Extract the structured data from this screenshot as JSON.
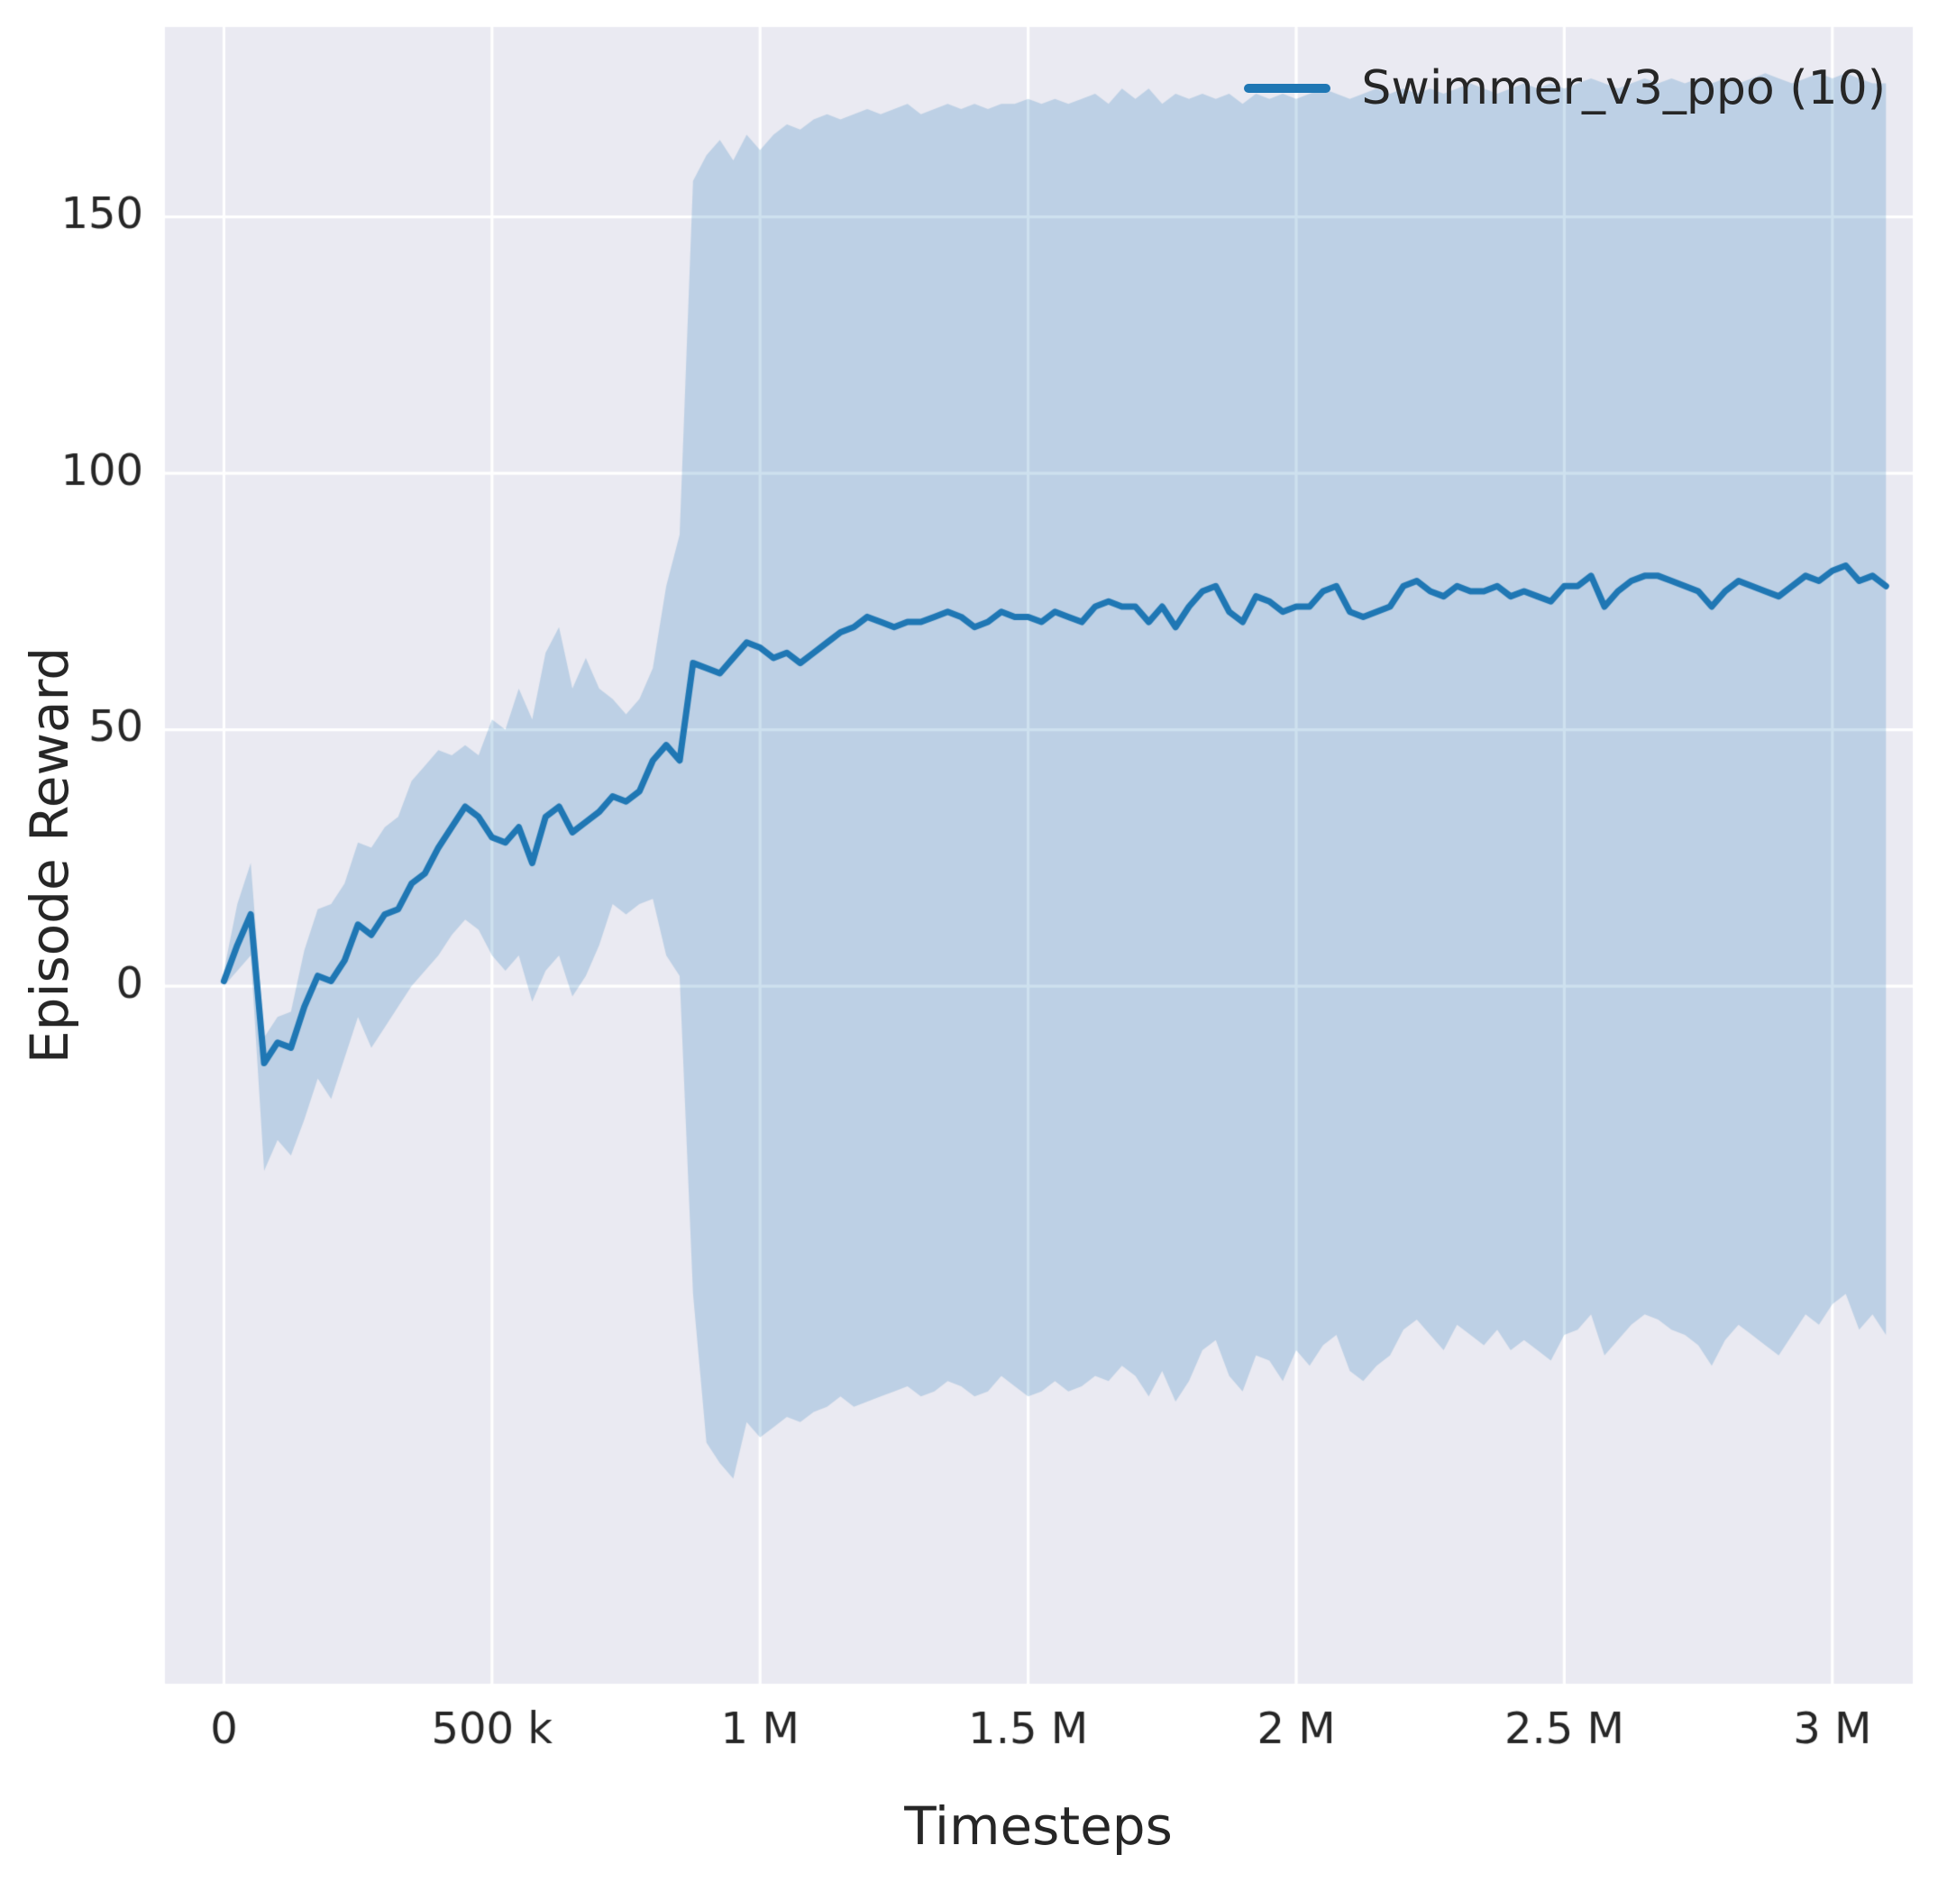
{
  "chart_data": {
    "type": "line",
    "title": "",
    "xlabel": "Timesteps",
    "ylabel": "Episode Reward",
    "grid": true,
    "legend_position": "upper right",
    "xlim": [
      -110000,
      3150000
    ],
    "ylim": [
      -136,
      187
    ],
    "x_ticks": {
      "values": [
        0,
        500000,
        1000000,
        1500000,
        2000000,
        2500000,
        3000000
      ],
      "labels": [
        "0",
        "500 k",
        "1 M",
        "1.5 M",
        "2 M",
        "2.5 M",
        "3 M"
      ]
    },
    "y_ticks": {
      "values": [
        0,
        50,
        100,
        150
      ],
      "labels": [
        "0",
        "50",
        "100",
        "150"
      ]
    },
    "x_step": 25000,
    "series": [
      {
        "name": "Swimmer_v3_ppo (10)",
        "mean": [
          1,
          8,
          14,
          -15,
          -11,
          -12,
          -4,
          2,
          1,
          5,
          12,
          10,
          14,
          15,
          20,
          22,
          27,
          31,
          35,
          33,
          29,
          28,
          31,
          24,
          33,
          35,
          30,
          32,
          34,
          37,
          36,
          38,
          44,
          47,
          44,
          63,
          62,
          61,
          64,
          67,
          66,
          64,
          65,
          63,
          65,
          67,
          69,
          70,
          72,
          71,
          70,
          71,
          71,
          72,
          73,
          72,
          70,
          71,
          73,
          72,
          72,
          71,
          73,
          72,
          71,
          74,
          75,
          74,
          74,
          71,
          74,
          70,
          74,
          77,
          78,
          73,
          71,
          76,
          75,
          73,
          74,
          74,
          77,
          78,
          73,
          72,
          73,
          74,
          78,
          79,
          77,
          76,
          78,
          77,
          77,
          78,
          76,
          77,
          76,
          75,
          78,
          78,
          80,
          74,
          77,
          79,
          80,
          80,
          79,
          78,
          77,
          74,
          77,
          79,
          78,
          77,
          76,
          78,
          80,
          79,
          81,
          82,
          79,
          80,
          78
        ],
        "lower": [
          0,
          3,
          6,
          -36,
          -30,
          -33,
          -26,
          -18,
          -22,
          -14,
          -6,
          -12,
          -8,
          -4,
          0,
          3,
          6,
          10,
          13,
          11,
          6,
          3,
          6,
          -3,
          3,
          6,
          -2,
          2,
          8,
          16,
          14,
          16,
          17,
          6,
          2,
          -60,
          -89,
          -93,
          -96,
          -85,
          -88,
          -86,
          -84,
          -85,
          -83,
          -82,
          -80,
          -82,
          -81,
          -80,
          -79,
          -78,
          -80,
          -79,
          -77,
          -78,
          -80,
          -79,
          -76,
          -78,
          -80,
          -79,
          -77,
          -79,
          -78,
          -76,
          -77,
          -74,
          -76,
          -80,
          -75,
          -81,
          -77,
          -71,
          -69,
          -76,
          -79,
          -72,
          -73,
          -77,
          -71,
          -74,
          -70,
          -68,
          -75,
          -77,
          -74,
          -72,
          -67,
          -65,
          -68,
          -71,
          -66,
          -68,
          -70,
          -67,
          -71,
          -69,
          -71,
          -73,
          -68,
          -67,
          -64,
          -72,
          -69,
          -66,
          -64,
          -65,
          -67,
          -68,
          -70,
          -74,
          -69,
          -66,
          -68,
          -70,
          -72,
          -68,
          -64,
          -66,
          -62,
          -60,
          -67,
          -64,
          -68
        ],
        "upper": [
          3,
          16,
          24,
          -10,
          -6,
          -5,
          7,
          15,
          16,
          20,
          28,
          27,
          31,
          33,
          40,
          43,
          46,
          45,
          47,
          45,
          52,
          50,
          58,
          52,
          65,
          70,
          58,
          64,
          58,
          56,
          53,
          56,
          62,
          78,
          88,
          157,
          162,
          165,
          161,
          166,
          163,
          166,
          168,
          167,
          169,
          170,
          169,
          170,
          171,
          170,
          171,
          172,
          170,
          171,
          172,
          171,
          172,
          171,
          172,
          172,
          173,
          172,
          173,
          172,
          173,
          174,
          172,
          175,
          173,
          175,
          172,
          174,
          173,
          174,
          173,
          174,
          172,
          174,
          173,
          174,
          173,
          174,
          175,
          174,
          173,
          174,
          175,
          174,
          175,
          174,
          175,
          174,
          175,
          176,
          175,
          174,
          175,
          176,
          175,
          176,
          175,
          176,
          177,
          176,
          175,
          176,
          177,
          176,
          177,
          176,
          177,
          176,
          177,
          176,
          177,
          178,
          177,
          176,
          177,
          178,
          177,
          178,
          177,
          176,
          176
        ]
      }
    ],
    "styles": {
      "figure_bg": "#ffffff",
      "axes_bg": "#eaeaf2",
      "grid_color": "#ffffff",
      "line_color": "#1f77b4",
      "band_color": "rgba(31,119,180,0.22)",
      "text_color": "#262626"
    }
  }
}
